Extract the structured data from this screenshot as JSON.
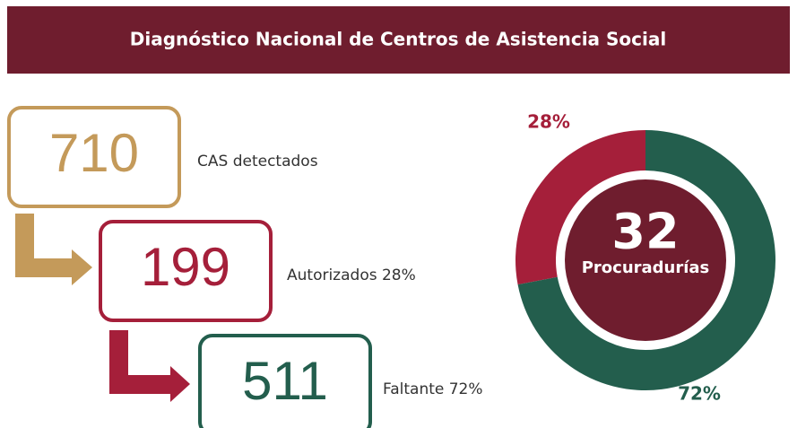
{
  "header": {
    "title": "Diagnóstico Nacional de Centros de Asistencia Social"
  },
  "boxes": [
    {
      "value": "710",
      "label": "CAS detectados",
      "color": "#c49a5a"
    },
    {
      "value": "199",
      "label": "Autorizados 28%",
      "color": "#a51f3a"
    },
    {
      "value": "511",
      "label": "Faltante 72%",
      "color": "#235e4d"
    }
  ],
  "donut": {
    "center_value": "32",
    "center_label": "Procuradurías",
    "center_color": "#6f1d2e",
    "segments": [
      {
        "value": 28,
        "label": "28%",
        "color": "#a51f3a"
      },
      {
        "value": 72,
        "label": "72%",
        "color": "#235e4d"
      }
    ]
  }
}
